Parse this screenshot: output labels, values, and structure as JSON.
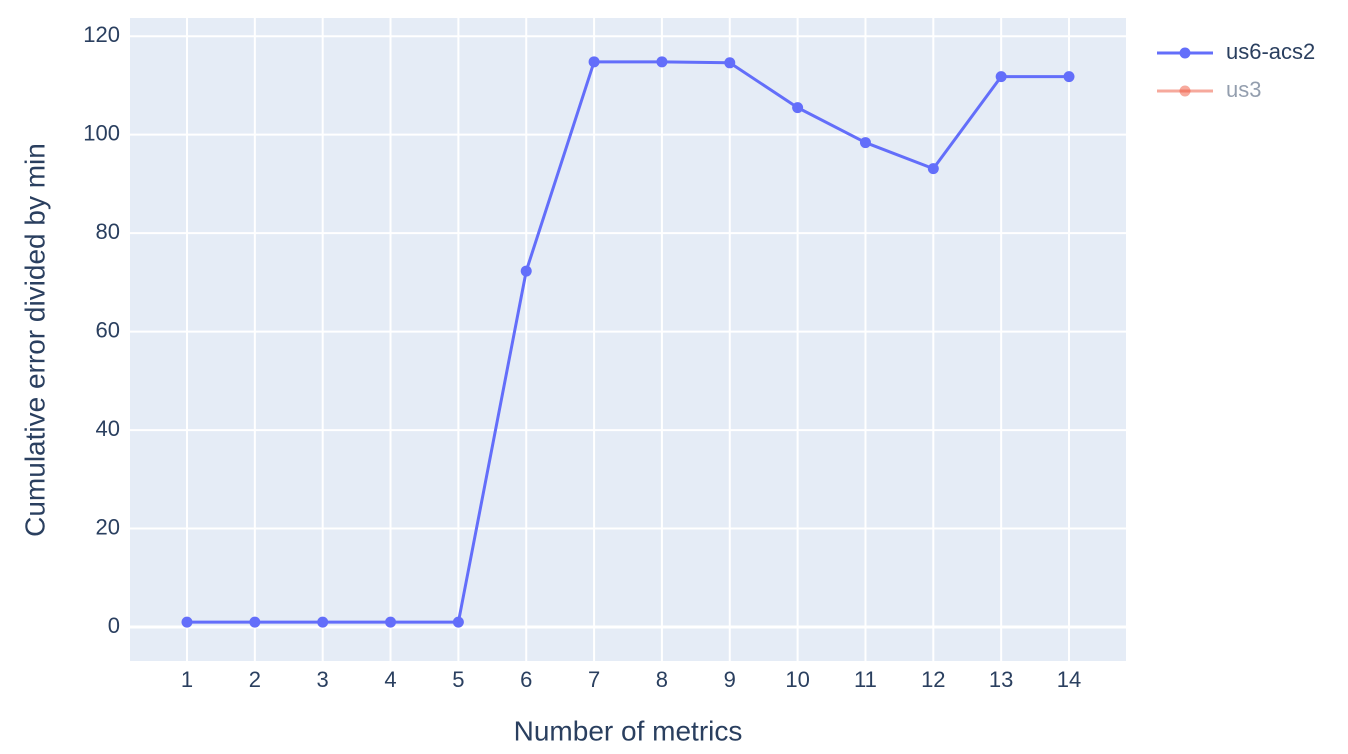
{
  "chart_data": {
    "type": "line",
    "x_label": "Number of metrics",
    "y_label": "Cumulative error divided by min",
    "x": [
      1,
      2,
      3,
      4,
      5,
      6,
      7,
      8,
      9,
      10,
      11,
      12,
      13,
      14
    ],
    "series": [
      {
        "name": "us6-acs2",
        "color": "#636efa",
        "values": [
          1,
          1,
          1,
          1,
          1,
          72.3,
          114.8,
          114.8,
          114.6,
          105.5,
          98.4,
          93.1,
          111.8,
          111.8
        ]
      },
      {
        "name": "us3",
        "color": "#ef553b",
        "visible": "legendonly",
        "values": [
          null,
          null,
          null,
          null,
          null,
          null,
          null,
          null,
          null,
          null,
          null,
          null,
          null,
          null
        ]
      }
    ],
    "xlim": [
      0.16,
      14.84
    ],
    "xticks": [
      1,
      2,
      3,
      4,
      5,
      6,
      7,
      8,
      9,
      10,
      11,
      12,
      13,
      14
    ],
    "ylim": [
      -6.9,
      123.7
    ],
    "yticks": [
      0,
      20,
      40,
      60,
      80,
      100,
      120
    ],
    "grid": true,
    "legend": "right"
  }
}
